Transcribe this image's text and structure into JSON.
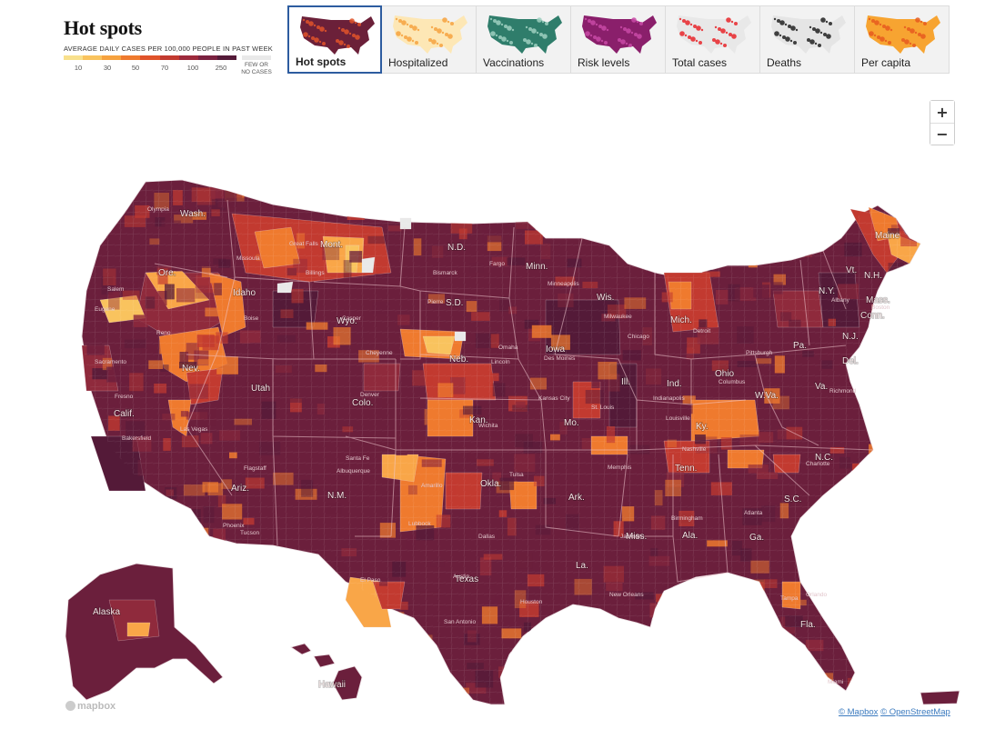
{
  "header": {
    "title": "Hot spots",
    "legend_caption": "AVERAGE DAILY CASES PER 100,000 PEOPLE IN PAST WEEK",
    "legend_ticks": [
      "10",
      "30",
      "50",
      "70",
      "100",
      "250"
    ],
    "legend_colors": [
      "#f8e08c",
      "#f9c35e",
      "#f6a23f",
      "#ef7a2e",
      "#e0532a",
      "#c23a30",
      "#9d2a3c",
      "#7a2140",
      "#541a38"
    ],
    "few_cases_line1": "FEW OR",
    "few_cases_line2": "NO CASES",
    "few_cases_color": "#e9e9e9"
  },
  "tabs": [
    {
      "label": "Hot spots",
      "active": true,
      "icon": "hotspots-thumbnail",
      "colors": [
        "#6b2039",
        "#e0532a"
      ]
    },
    {
      "label": "Hospitalized",
      "active": false,
      "icon": "hospitalized-thumbnail",
      "colors": [
        "#fde7b5",
        "#f6a23f"
      ]
    },
    {
      "label": "Vaccinations",
      "active": false,
      "icon": "vaccinations-thumbnail",
      "colors": [
        "#2f7d6b",
        "#9dcfbf"
      ]
    },
    {
      "label": "Risk levels",
      "active": false,
      "icon": "risk-levels-thumbnail",
      "colors": [
        "#8a1f6b",
        "#c84aa6"
      ]
    },
    {
      "label": "Total cases",
      "active": false,
      "icon": "total-cases-thumbnail",
      "colors": [
        "#e8e8e8",
        "#e8262a"
      ]
    },
    {
      "label": "Deaths",
      "active": false,
      "icon": "deaths-thumbnail",
      "colors": [
        "#e5e5e5",
        "#222222"
      ]
    },
    {
      "label": "Per capita",
      "active": false,
      "icon": "per-capita-thumbnail",
      "colors": [
        "#f7a431",
        "#e65a1f"
      ]
    }
  ],
  "zoom": {
    "in": "+",
    "out": "−"
  },
  "map": {
    "colors": {
      "dark": "#541a38",
      "deep": "#6b1f3c",
      "mid": "#8f2a3c",
      "red": "#c23a30",
      "orange": "#ef7a2e",
      "light_orange": "#f9a648",
      "yellow": "#f9c35e",
      "border": "#e9dce0"
    },
    "state_labels": [
      "Wash.",
      "Ore.",
      "Calif.",
      "Nev.",
      "Idaho",
      "Mont.",
      "Wyo.",
      "Utah",
      "Ariz.",
      "Colo.",
      "N.M.",
      "N.D.",
      "S.D.",
      "Neb.",
      "Kan.",
      "Okla.",
      "Texas",
      "Minn.",
      "Iowa",
      "Mo.",
      "Ark.",
      "La.",
      "Wis.",
      "Ill.",
      "Mich.",
      "Ind.",
      "Ohio",
      "Ky.",
      "Tenn.",
      "Miss.",
      "Ala.",
      "Ga.",
      "Fla.",
      "S.C.",
      "N.C.",
      "Va.",
      "W.Va.",
      "Pa.",
      "N.Y.",
      "Maine",
      "Vt.",
      "N.H.",
      "Mass.",
      "Conn.",
      "N.J.",
      "Del.",
      "Alaska",
      "Hawaii"
    ],
    "city_labels": [
      "Olympia",
      "Salem",
      "Eugene",
      "Boise",
      "Reno",
      "Sacramento",
      "Fresno",
      "Bakersfield",
      "Las Vegas",
      "Flagstaff",
      "Phoenix",
      "Tucson",
      "Albuquerque",
      "Santa Fe",
      "Amarillo",
      "Lubbock",
      "El Paso",
      "San Antonio",
      "Houston",
      "Dallas",
      "Austin",
      "Denver",
      "Cheyenne",
      "Casper",
      "Billings",
      "Missoula",
      "Great Falls",
      "Fargo",
      "Bismarck",
      "Pierre",
      "Omaha",
      "Lincoln",
      "Wichita",
      "Tulsa",
      "Memphis",
      "Nashville",
      "Atlanta",
      "Birmingham",
      "Jackson",
      "New Orleans",
      "Tampa",
      "Miami",
      "Orlando",
      "Charlotte",
      "Richmond",
      "Pittsburgh",
      "Detroit",
      "Chicago",
      "Milwaukee",
      "Minneapolis",
      "Des Moines",
      "Kansas City",
      "St. Louis",
      "Indianapolis",
      "Columbus",
      "Louisville",
      "Boston",
      "Albany"
    ]
  },
  "footer": {
    "mapbox": "mapbox",
    "attribution_mapbox": "© Mapbox",
    "attribution_osm": "© OpenStreetMap"
  }
}
